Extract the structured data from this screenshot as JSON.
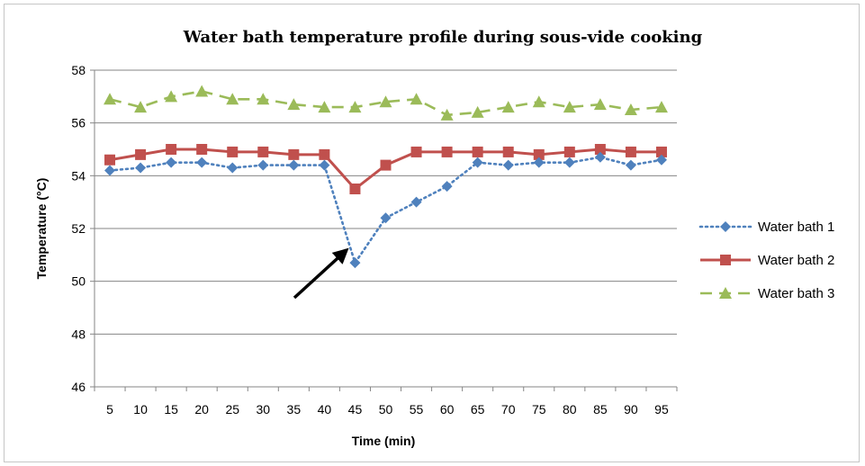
{
  "chart_data": {
    "type": "line",
    "title": "Water bath temperature profile during sous-vide cooking",
    "xlabel": "Time (min)",
    "ylabel": "Temperature (°C)",
    "categories": [
      "5",
      "10",
      "15",
      "20",
      "25",
      "30",
      "35",
      "40",
      "45",
      "50",
      "55",
      "60",
      "65",
      "70",
      "75",
      "80",
      "85",
      "90",
      "95"
    ],
    "ylim": [
      46,
      58
    ],
    "yticks": [
      46,
      48,
      50,
      52,
      54,
      56,
      58
    ],
    "grid": "horizontal",
    "legend_position": "right",
    "series": [
      {
        "name": "Water bath 1",
        "color": "#4F81BD",
        "marker": "diamond",
        "line": "dotted",
        "values": [
          54.2,
          54.3,
          54.5,
          54.5,
          54.3,
          54.4,
          54.4,
          54.4,
          50.7,
          52.4,
          53.0,
          53.6,
          54.5,
          54.4,
          54.5,
          54.5,
          54.7,
          54.4,
          54.6
        ]
      },
      {
        "name": "Water bath 2",
        "color": "#C0504D",
        "marker": "square",
        "line": "solid",
        "values": [
          54.6,
          54.8,
          55.0,
          55.0,
          54.9,
          54.9,
          54.8,
          54.8,
          53.5,
          54.4,
          54.9,
          54.9,
          54.9,
          54.9,
          54.8,
          54.9,
          55.0,
          54.9,
          54.9
        ]
      },
      {
        "name": "Water bath 3",
        "color": "#9BBB59",
        "marker": "triangle",
        "line": "dashed",
        "values": [
          56.9,
          56.6,
          57.0,
          57.2,
          56.9,
          56.9,
          56.7,
          56.6,
          56.6,
          56.8,
          56.9,
          56.3,
          56.4,
          56.6,
          56.8,
          56.6,
          56.7,
          56.5,
          56.6
        ]
      }
    ],
    "annotation": {
      "type": "arrow",
      "points_to_category": "45",
      "series": "Water bath 1"
    }
  }
}
